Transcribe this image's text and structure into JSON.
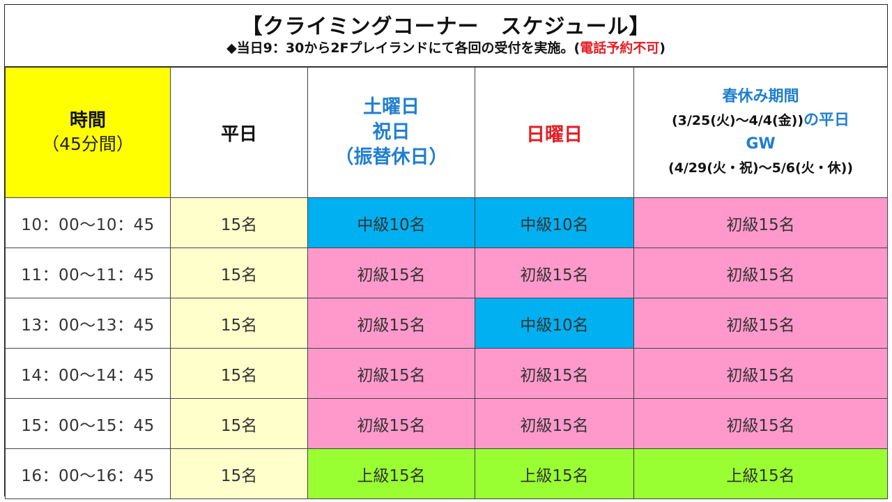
{
  "header": {
    "title": "【クライミングコーナー　スケジュール】",
    "subtitle_main": "◆当日9：30から2Fプレイランドにて各回の受付を実施。(",
    "subtitle_red": "電話予約不可",
    "subtitle_end": ")"
  },
  "columns": {
    "time": {
      "line1": "時間",
      "line2": "（45分間）"
    },
    "weekday": {
      "label": "平日"
    },
    "saturday": {
      "line1": "土曜日",
      "line2": "祝日",
      "line3": "（振替休日）"
    },
    "sunday": {
      "label": "日曜日"
    },
    "spring": {
      "line1": "春休み期間",
      "line2_black": "(3/25(火)〜4/4(金))",
      "line2_blue": "の平日",
      "line3": "GW",
      "line4": "(4/29(火・祝)〜5/6(火・休))"
    }
  },
  "colors": {
    "time_header": "#ffff00",
    "weekday_cell": "#ffffcc",
    "intermediate": "#00b0f0",
    "beginner": "#ff99cc",
    "advanced": "#99ff33",
    "sunday_text": "#e51c23",
    "saturday_text": "#1f7fd0"
  },
  "rows": [
    {
      "time": "10：00〜10：45",
      "weekday": "15名",
      "saturday": "中級10名",
      "sunday": "中級10名",
      "spring": "初級15名"
    },
    {
      "time": "11：00〜11：45",
      "weekday": "15名",
      "saturday": "初級15名",
      "sunday": "初級15名",
      "spring": "初級15名"
    },
    {
      "time": "13：00〜13：45",
      "weekday": "15名",
      "saturday": "初級15名",
      "sunday": "中級10名",
      "spring": "初級15名"
    },
    {
      "time": "14：00〜14：45",
      "weekday": "15名",
      "saturday": "初級15名",
      "sunday": "初級15名",
      "spring": "初級15名"
    },
    {
      "time": "15：00〜15：45",
      "weekday": "15名",
      "saturday": "初級15名",
      "sunday": "初級15名",
      "spring": "初級15名"
    },
    {
      "time": "16：00〜16：45",
      "weekday": "15名",
      "saturday": "上級15名",
      "sunday": "上級15名",
      "spring": "上級15名"
    }
  ]
}
